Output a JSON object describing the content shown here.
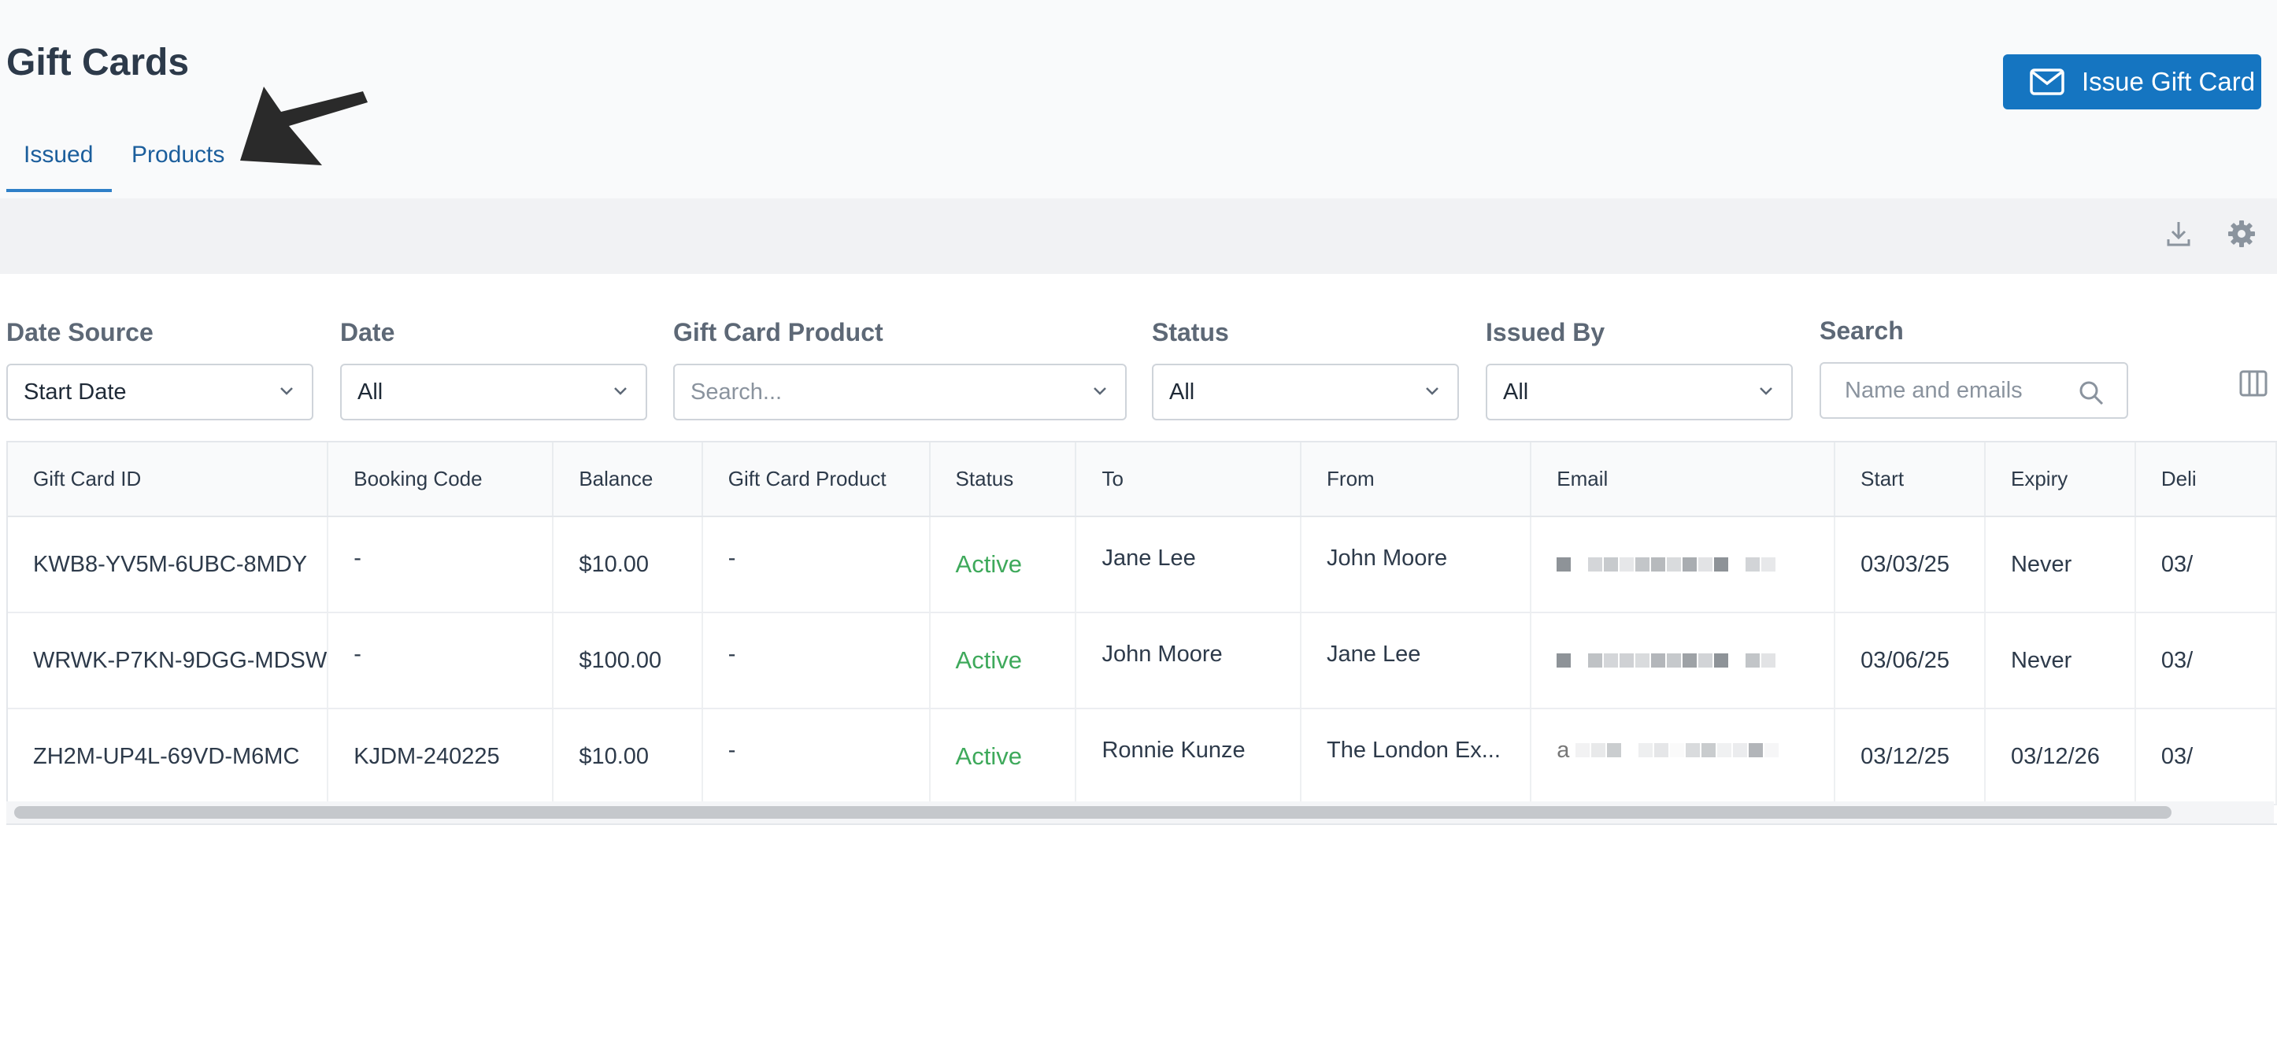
{
  "header": {
    "title": "Gift Cards",
    "issue_button": "Issue Gift Card",
    "tabs": [
      {
        "label": "Issued",
        "active": true
      },
      {
        "label": "Products",
        "active": false
      }
    ]
  },
  "toolbar": {
    "icons": [
      "download-icon",
      "gear-icon"
    ]
  },
  "filters": {
    "date_source": {
      "label": "Date Source",
      "value": "Start Date"
    },
    "date": {
      "label": "Date",
      "value": "All"
    },
    "gift_card_product": {
      "label": "Gift Card Product",
      "placeholder": "Search..."
    },
    "status": {
      "label": "Status",
      "value": "All"
    },
    "issued_by": {
      "label": "Issued By",
      "value": "All"
    },
    "search": {
      "label": "Search",
      "placeholder": "Name and emails"
    }
  },
  "table": {
    "columns": [
      "Gift Card ID",
      "Booking Code",
      "Balance",
      "Gift Card Product",
      "Status",
      "To",
      "From",
      "Email",
      "Start",
      "Expiry",
      "Deli"
    ],
    "rows": [
      {
        "id": "KWB8-YV5M-6UBC-8MDY",
        "booking": "-",
        "balance": "$10.00",
        "product": "-",
        "status": "Active",
        "to": "Jane Lee",
        "from": "John Moore",
        "email_prefix": "",
        "start": "03/03/25",
        "expiry": "Never",
        "delivery": "03/"
      },
      {
        "id": "WRWK-P7KN-9DGG-MDSW",
        "booking": "-",
        "balance": "$100.00",
        "product": "-",
        "status": "Active",
        "to": "John Moore",
        "from": "Jane Lee",
        "email_prefix": "",
        "start": "03/06/25",
        "expiry": "Never",
        "delivery": "03/"
      },
      {
        "id": "ZH2M-UP4L-69VD-M6MC",
        "booking": "KJDM-240225",
        "balance": "$10.00",
        "product": "-",
        "status": "Active",
        "to": "Ronnie Kunze",
        "from": "The London Ex...",
        "email_prefix": "a",
        "start": "03/12/25",
        "expiry": "03/12/26",
        "delivery": "03/"
      }
    ]
  },
  "colors": {
    "primary": "#1575c1",
    "active_status": "#3ea95b",
    "tab_text": "#1b5e9c"
  }
}
